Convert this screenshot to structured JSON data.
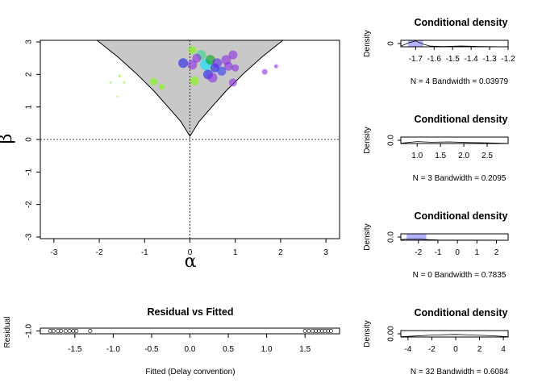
{
  "main_plot": {
    "xlabel": "α",
    "ylabel": "β",
    "xlim": [
      -3.3,
      3.3
    ],
    "ylim": [
      -3.05,
      3.05
    ],
    "xticks": [
      -3,
      -2,
      -1,
      0,
      1,
      2,
      3
    ],
    "yticks": [
      -3,
      -2,
      -1,
      0,
      1,
      2,
      3
    ],
    "region_fill": "#c8c8c8",
    "boundary_curve": [
      [
        -2.05,
        3.05
      ],
      [
        -1.6,
        2.55
      ],
      [
        -1.2,
        2.05
      ],
      [
        -0.8,
        1.5
      ],
      [
        -0.45,
        0.95
      ],
      [
        -0.2,
        0.55
      ],
      [
        0,
        0.1
      ],
      [
        0.2,
        0.55
      ],
      [
        0.45,
        0.95
      ],
      [
        0.8,
        1.5
      ],
      [
        1.2,
        2.05
      ],
      [
        1.6,
        2.55
      ],
      [
        2.05,
        3.05
      ]
    ],
    "points": [
      {
        "a": -1.75,
        "b": 1.75,
        "r": 1.3,
        "c": "#7cfc00"
      },
      {
        "a": -1.55,
        "b": 1.95,
        "r": 1.6,
        "c": "#7cfc00"
      },
      {
        "a": -1.45,
        "b": 1.75,
        "r": 1.3,
        "c": "#7cfc00"
      },
      {
        "a": -1.6,
        "b": 1.32,
        "r": 1.1,
        "c": "#7cfc00"
      },
      {
        "a": -0.8,
        "b": 1.78,
        "r": 4.5,
        "c": "#7cfc00"
      },
      {
        "a": -0.62,
        "b": 1.62,
        "r": 3.5,
        "c": "#7cfc00"
      },
      {
        "a": -0.15,
        "b": 2.35,
        "r": 6,
        "c": "#1e1ef0"
      },
      {
        "a": 0.05,
        "b": 2.3,
        "r": 6,
        "c": "#8a2be2"
      },
      {
        "a": 0.1,
        "b": 1.8,
        "r": 5.5,
        "c": "#7cfc00"
      },
      {
        "a": 0.05,
        "b": 2.75,
        "r": 5,
        "c": "#7cfc00"
      },
      {
        "a": 0.25,
        "b": 2.6,
        "r": 6,
        "c": "#2bd88a"
      },
      {
        "a": 0.35,
        "b": 2.3,
        "r": 7,
        "c": "#00e5ff"
      },
      {
        "a": 0.4,
        "b": 2.0,
        "r": 6,
        "c": "#1e1ef0"
      },
      {
        "a": 0.45,
        "b": 2.45,
        "r": 6,
        "c": "#00a020"
      },
      {
        "a": 0.5,
        "b": 1.9,
        "r": 6,
        "c": "#8a2be2"
      },
      {
        "a": 0.55,
        "b": 2.2,
        "r": 5.5,
        "c": "#1e1ef0"
      },
      {
        "a": 0.6,
        "b": 2.35,
        "r": 6,
        "c": "#5a2be2"
      },
      {
        "a": 0.7,
        "b": 2.1,
        "r": 5.5,
        "c": "#2b3cf0"
      },
      {
        "a": 0.8,
        "b": 2.45,
        "r": 6,
        "c": "#8a2be2"
      },
      {
        "a": 0.85,
        "b": 2.25,
        "r": 5.5,
        "c": "#8a2be2"
      },
      {
        "a": 0.95,
        "b": 2.6,
        "r": 5.5,
        "c": "#8a2be2"
      },
      {
        "a": 0.95,
        "b": 1.75,
        "r": 5,
        "c": "#8a2be2"
      },
      {
        "a": 1.0,
        "b": 2.2,
        "r": 4.5,
        "c": "#8a2be2"
      },
      {
        "a": 1.65,
        "b": 2.08,
        "r": 3.5,
        "c": "#8a2be2"
      },
      {
        "a": 1.9,
        "b": 2.25,
        "r": 2.5,
        "c": "#8a2be2"
      },
      {
        "a": 0.15,
        "b": 2.5,
        "r": 5.5,
        "c": "#8a2be2"
      }
    ]
  },
  "residual_plot": {
    "title": "Residual vs Fitted",
    "xlabel": "Fitted (Delay convention)",
    "ylabel": "Residual",
    "xlim": [
      -1.95,
      1.95
    ],
    "xticks": [
      -1.5,
      -1.0,
      -0.5,
      0.0,
      0.5,
      1.0,
      1.5
    ],
    "xtick_labels": [
      "-1.5",
      "-1.0",
      "-0.5",
      "0.0",
      "0.5",
      "1.0",
      "1.5"
    ],
    "ytick_labels": [
      "-1.0"
    ],
    "points": [
      {
        "x": -1.82,
        "y": 0
      },
      {
        "x": -1.78,
        "y": 0
      },
      {
        "x": -1.72,
        "y": 0
      },
      {
        "x": -1.68,
        "y": 0
      },
      {
        "x": -1.62,
        "y": 0
      },
      {
        "x": -1.57,
        "y": 0
      },
      {
        "x": -1.52,
        "y": 0
      },
      {
        "x": -1.48,
        "y": 0
      },
      {
        "x": -1.3,
        "y": 0
      },
      {
        "x": 1.5,
        "y": 0
      },
      {
        "x": 1.55,
        "y": 0
      },
      {
        "x": 1.6,
        "y": 0
      },
      {
        "x": 1.64,
        "y": 0
      },
      {
        "x": 1.68,
        "y": 0
      },
      {
        "x": 1.72,
        "y": 0
      },
      {
        "x": 1.76,
        "y": 0
      },
      {
        "x": 1.8,
        "y": 0
      },
      {
        "x": 1.84,
        "y": 0
      }
    ]
  },
  "density_panels": [
    {
      "title": "Conditional density",
      "ylabel": "Density",
      "xlim": [
        -1.78,
        -1.2
      ],
      "xticks": [
        -1.7,
        -1.6,
        -1.5,
        -1.4,
        -1.3,
        -1.2
      ],
      "xtick_labels": [
        "-1.7",
        "-1.6",
        "-1.5",
        "-1.4",
        "-1.3",
        "-1.2"
      ],
      "ytick_labels": [
        "0"
      ],
      "stats": "N = 4   Bandwidth = 0.03979",
      "curve": [
        [
          -1.78,
          0.1
        ],
        [
          -1.74,
          0.6
        ],
        [
          -1.7,
          0.9
        ],
        [
          -1.66,
          0.4
        ],
        [
          -1.62,
          0.1
        ],
        [
          -1.55,
          0.05
        ],
        [
          -1.45,
          0.12
        ],
        [
          -1.35,
          0.05
        ],
        [
          -1.2,
          0
        ]
      ],
      "fill_band": [
        -1.74,
        -1.66
      ]
    },
    {
      "title": "Conditional density",
      "ylabel": "Density",
      "xlim": [
        0.65,
        2.95
      ],
      "xticks": [
        1.0,
        1.5,
        2.0,
        2.5
      ],
      "xtick_labels": [
        "1.0",
        "1.5",
        "2.0",
        "2.5"
      ],
      "ytick_labels": [
        "0.0"
      ],
      "stats": "N = 3   Bandwidth = 0.2095",
      "curve": [
        [
          0.65,
          0.05
        ],
        [
          1.0,
          0.3
        ],
        [
          1.3,
          0.2
        ],
        [
          1.7,
          0.25
        ],
        [
          2.1,
          0.15
        ],
        [
          2.5,
          0.1
        ],
        [
          2.95,
          0.02
        ]
      ],
      "fill_band": null
    },
    {
      "title": "Conditional density",
      "ylabel": "Density",
      "xlim": [
        -2.9,
        2.6
      ],
      "xticks": [
        -2,
        -1,
        0,
        1,
        2
      ],
      "xtick_labels": [
        "-2",
        "-1",
        "0",
        "1",
        "2"
      ],
      "ytick_labels": [
        "0.0"
      ],
      "stats": "N = 0   Bandwidth = 0.7835",
      "curve": [
        [
          -2.9,
          0.1
        ],
        [
          -2.5,
          0.2
        ],
        [
          -2.0,
          0.2
        ],
        [
          -1.5,
          0.1
        ],
        [
          -1.0,
          0.05
        ],
        [
          2.6,
          0.02
        ]
      ],
      "fill_band": [
        -2.6,
        -1.6
      ]
    },
    {
      "title": "Conditional density",
      "ylabel": "Density",
      "xlim": [
        -4.6,
        4.4
      ],
      "xticks": [
        -4,
        -2,
        0,
        2,
        4
      ],
      "xtick_labels": [
        "-4",
        "-2",
        "0",
        "2",
        "4"
      ],
      "ytick_labels": [
        "0.00"
      ],
      "stats": "N = 32   Bandwidth = 0.6084",
      "curve": [
        [
          -4.6,
          0.05
        ],
        [
          -3.5,
          0.15
        ],
        [
          -2.0,
          0.3
        ],
        [
          0.0,
          0.4
        ],
        [
          1.5,
          0.3
        ],
        [
          3.0,
          0.2
        ],
        [
          4.4,
          0.05
        ]
      ],
      "fill_band": null
    }
  ]
}
